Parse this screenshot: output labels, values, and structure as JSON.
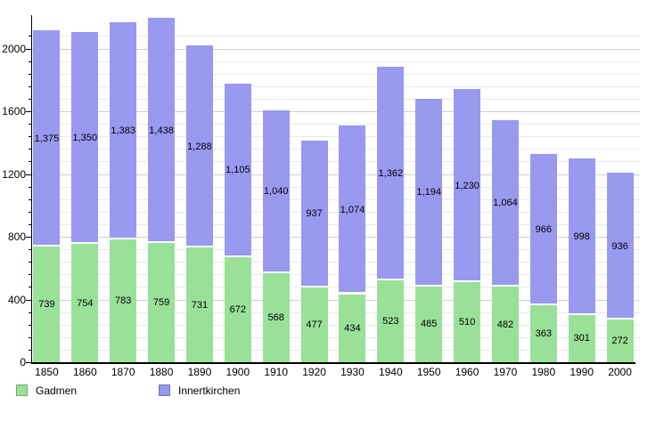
{
  "chart_data": {
    "type": "bar",
    "stacked": true,
    "title": "",
    "xlabel": "",
    "ylabel": "",
    "categories": [
      "1850",
      "1860",
      "1870",
      "1880",
      "1890",
      "1900",
      "1910",
      "1920",
      "1930",
      "1940",
      "1950",
      "1960",
      "1970",
      "1980",
      "1990",
      "2000"
    ],
    "series": [
      {
        "name": "Gadmen",
        "color": "#99e099",
        "values": [
          739,
          754,
          783,
          759,
          731,
          672,
          568,
          477,
          434,
          523,
          485,
          510,
          482,
          363,
          301,
          272
        ]
      },
      {
        "name": "Innertkirchen",
        "color": "#9999f0",
        "values": [
          1375,
          1350,
          1383,
          1438,
          1288,
          1105,
          1040,
          937,
          1074,
          1362,
          1194,
          1230,
          1064,
          966,
          998,
          936
        ]
      }
    ],
    "value_labels": {
      "gadmen": [
        "739",
        "754",
        "783",
        "759",
        "731",
        "672",
        "568",
        "477",
        "434",
        "523",
        "485",
        "510",
        "482",
        "363",
        "301",
        "272"
      ],
      "innertkirchen": [
        "1,375",
        "1,350",
        "1,383",
        "1,438",
        "1,288",
        "1,105",
        "1,040",
        "937",
        "1,074",
        "1,362",
        "1,194",
        "1,230",
        "1,064",
        "966",
        "998",
        "936"
      ]
    },
    "yticks": [
      "0",
      "400",
      "800",
      "1200",
      "1600",
      "2000"
    ],
    "ytick_values": [
      0,
      400,
      800,
      1200,
      1600,
      2000
    ],
    "minor_grid_step": 80,
    "ylim": [
      0,
      2230
    ],
    "grid": true,
    "legend_position": "bottom-left",
    "colors": {
      "grid_minor": "#e9e9e9",
      "grid_major": "#cfcfcf",
      "axis": "#000000",
      "label_text": "#000000",
      "background": "#ffffff"
    }
  }
}
